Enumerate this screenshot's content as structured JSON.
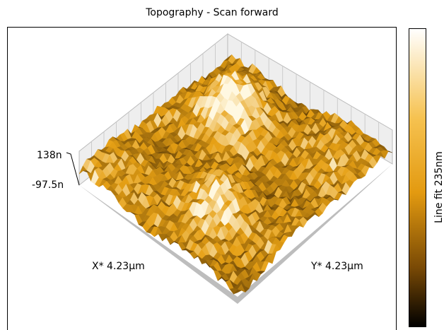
{
  "title": "Topography - Scan forward",
  "z_axis": {
    "max_label": "138n",
    "min_label": "-97.5n"
  },
  "x_axis_label": "X* 4.23µm",
  "y_axis_label": "Y* 4.23µm",
  "colorbar_label": "Line fit 235nm"
}
